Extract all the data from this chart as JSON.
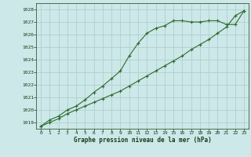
{
  "title": "Graphe pression niveau de la mer (hPa)",
  "bg_color": "#cce8e8",
  "grid_color": "#b0d0d0",
  "line_color": "#2d6a2d",
  "marker": "+",
  "xlim": [
    -0.5,
    23.5
  ],
  "ylim": [
    1018.5,
    1028.5
  ],
  "yticks": [
    1019,
    1020,
    1021,
    1022,
    1023,
    1024,
    1025,
    1026,
    1027,
    1028
  ],
  "xticks": [
    0,
    1,
    2,
    3,
    4,
    5,
    6,
    7,
    8,
    9,
    10,
    11,
    12,
    13,
    14,
    15,
    16,
    17,
    18,
    19,
    20,
    21,
    22,
    23
  ],
  "series1_x": [
    0,
    1,
    2,
    3,
    4,
    5,
    6,
    7,
    8,
    9,
    10,
    11,
    12,
    13,
    14,
    15,
    16,
    17,
    18,
    19,
    20,
    21,
    22,
    23
  ],
  "series1_y": [
    1018.7,
    1019.2,
    1019.5,
    1020.0,
    1020.3,
    1020.8,
    1021.4,
    1021.9,
    1022.5,
    1023.1,
    1024.3,
    1025.3,
    1026.1,
    1026.5,
    1026.7,
    1027.1,
    1027.1,
    1027.0,
    1027.0,
    1027.1,
    1027.1,
    1026.8,
    1026.8,
    1027.9
  ],
  "series2_x": [
    0,
    1,
    2,
    3,
    4,
    5,
    6,
    7,
    8,
    9,
    10,
    11,
    12,
    13,
    14,
    15,
    16,
    17,
    18,
    19,
    20,
    21,
    22,
    23
  ],
  "series2_y": [
    1018.7,
    1019.0,
    1019.3,
    1019.7,
    1020.0,
    1020.3,
    1020.6,
    1020.9,
    1021.2,
    1021.5,
    1021.9,
    1022.3,
    1022.7,
    1023.1,
    1023.5,
    1023.9,
    1024.3,
    1024.8,
    1025.2,
    1025.6,
    1026.1,
    1026.6,
    1027.5,
    1027.9
  ]
}
